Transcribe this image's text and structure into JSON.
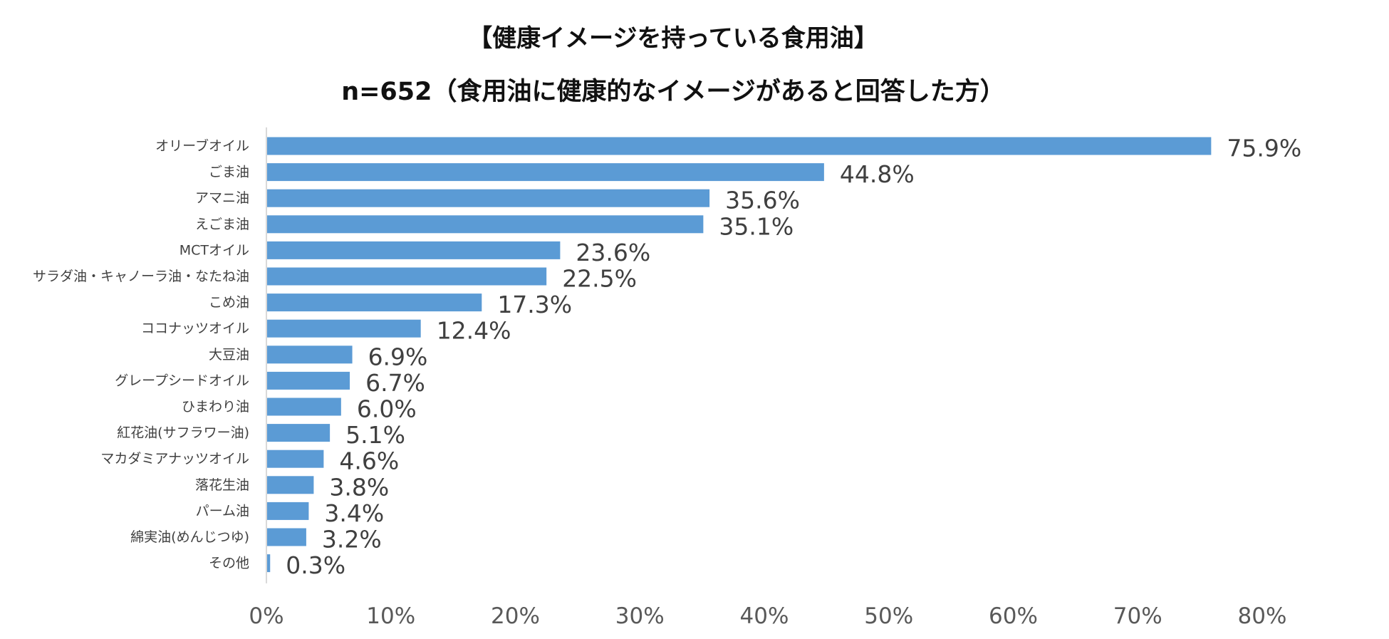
{
  "chart_data": {
    "type": "bar",
    "orientation": "horizontal",
    "title": "【健康イメージを持っている食用油】",
    "subtitle": "n=652（食用油に健康的なイメージがあると回答した方）",
    "categories": [
      "オリーブオイル",
      "ごま油",
      "アマニ油",
      "えごま油",
      "MCTオイル",
      "サラダ油・キャノーラ油・なたね油",
      "こめ油",
      "ココナッツオイル",
      "大豆油",
      "グレープシードオイル",
      "ひまわり油",
      "紅花油(サフラワー油)",
      "マカダミアナッツオイル",
      "落花生油",
      "パーム油",
      "綿実油(めんじつゆ)",
      "その他"
    ],
    "values": [
      75.9,
      44.8,
      35.6,
      35.1,
      23.6,
      22.5,
      17.3,
      12.4,
      6.9,
      6.7,
      6.0,
      5.1,
      4.6,
      3.8,
      3.4,
      3.2,
      0.3
    ],
    "value_labels": [
      "75.9%",
      "44.8%",
      "35.6%",
      "35.1%",
      "23.6%",
      "22.5%",
      "17.3%",
      "12.4%",
      "6.9%",
      "6.7%",
      "6.0%",
      "5.1%",
      "4.6%",
      "3.8%",
      "3.4%",
      "3.2%",
      "0.3%"
    ],
    "xlim": [
      0,
      80
    ],
    "xticks": [
      "0%",
      "10%",
      "20%",
      "30%",
      "40%",
      "50%",
      "60%",
      "70%",
      "80%"
    ],
    "xlabel": "",
    "ylabel": "",
    "grid": false,
    "legend": "none",
    "bar_color": "#5B9BD5",
    "axis_color": "#D9D9D9"
  }
}
